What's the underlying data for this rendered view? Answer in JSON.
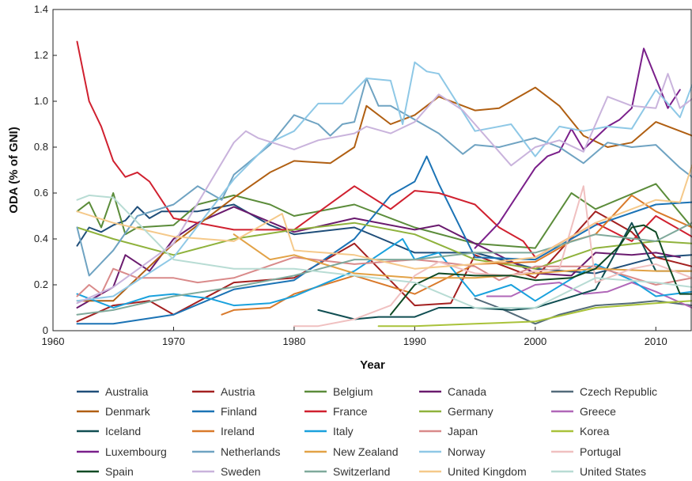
{
  "chart_data": {
    "type": "line",
    "title": "",
    "xlabel": "Year",
    "ylabel": "ODA (% of GNI)",
    "xlim": [
      1960,
      2013
    ],
    "ylim": [
      0,
      1.4
    ],
    "xticks": [
      1960,
      1970,
      1980,
      1990,
      2000,
      2010
    ],
    "yticks": [
      0,
      0.2,
      0.4,
      0.6,
      0.8,
      1.0,
      1.2,
      1.4
    ],
    "ytick_labels": [
      "0",
      "0.2",
      "0.4",
      "0.6",
      "0.8",
      "1.0",
      "1.2",
      "1.4"
    ],
    "grid": false,
    "legend_position": "bottom",
    "series": [
      {
        "name": "Australia",
        "color": "#1f4e79",
        "x": [
          1962,
          1963,
          1964,
          1965,
          1966,
          1967,
          1968,
          1969,
          1970,
          1972,
          1975,
          1978,
          1980,
          1985,
          1990,
          1995,
          2000,
          2005,
          2010,
          2013
        ],
        "y": [
          0.37,
          0.45,
          0.43,
          0.46,
          0.48,
          0.54,
          0.49,
          0.52,
          0.52,
          0.52,
          0.55,
          0.46,
          0.42,
          0.45,
          0.34,
          0.34,
          0.27,
          0.25,
          0.32,
          0.33
        ]
      },
      {
        "name": "Austria",
        "color": "#a32020",
        "x": [
          1962,
          1965,
          1968,
          1970,
          1975,
          1980,
          1985,
          1990,
          1993,
          1995,
          2000,
          2005,
          2008,
          2010,
          2013
        ],
        "y": [
          0.04,
          0.11,
          0.13,
          0.07,
          0.21,
          0.23,
          0.38,
          0.11,
          0.12,
          0.33,
          0.23,
          0.52,
          0.43,
          0.32,
          0.28
        ]
      },
      {
        "name": "Belgium",
        "color": "#5b8c3a",
        "x": [
          1962,
          1963,
          1964,
          1965,
          1966,
          1967,
          1970,
          1972,
          1975,
          1978,
          1980,
          1985,
          1990,
          1995,
          2000,
          2003,
          2005,
          2010,
          2013
        ],
        "y": [
          0.52,
          0.56,
          0.45,
          0.6,
          0.42,
          0.45,
          0.46,
          0.55,
          0.59,
          0.55,
          0.5,
          0.55,
          0.45,
          0.38,
          0.36,
          0.6,
          0.53,
          0.64,
          0.45
        ]
      },
      {
        "name": "Canada",
        "color": "#6a1b6e",
        "x": [
          1962,
          1965,
          1966,
          1968,
          1970,
          1972,
          1975,
          1980,
          1985,
          1990,
          1992,
          1995,
          2000,
          2003,
          2005,
          2008,
          2010,
          2012
        ],
        "y": [
          0.1,
          0.19,
          0.33,
          0.26,
          0.4,
          0.47,
          0.54,
          0.43,
          0.49,
          0.44,
          0.46,
          0.38,
          0.25,
          0.24,
          0.34,
          0.33,
          0.34,
          0.32
        ]
      },
      {
        "name": "Czech Republic",
        "color": "#536b7a",
        "x": [
          1995,
          1997,
          2000,
          2002,
          2005,
          2008,
          2010,
          2013
        ],
        "y": [
          0.14,
          0.1,
          0.03,
          0.07,
          0.11,
          0.12,
          0.13,
          0.11
        ]
      },
      {
        "name": "Denmark",
        "color": "#b05f12",
        "x": [
          1962,
          1965,
          1970,
          1975,
          1978,
          1980,
          1983,
          1985,
          1986,
          1988,
          1990,
          1992,
          1995,
          1997,
          2000,
          2002,
          2004,
          2006,
          2008,
          2010,
          2013
        ],
        "y": [
          0.13,
          0.13,
          0.38,
          0.58,
          0.69,
          0.74,
          0.73,
          0.8,
          0.98,
          0.9,
          0.94,
          1.02,
          0.96,
          0.97,
          1.06,
          0.98,
          0.85,
          0.8,
          0.82,
          0.91,
          0.85
        ]
      },
      {
        "name": "Finland",
        "color": "#1b73b5",
        "x": [
          1962,
          1965,
          1970,
          1975,
          1980,
          1985,
          1988,
          1990,
          1991,
          1992,
          1995,
          2000,
          2005,
          2010,
          2013
        ],
        "y": [
          0.03,
          0.03,
          0.07,
          0.18,
          0.22,
          0.4,
          0.59,
          0.65,
          0.76,
          0.64,
          0.32,
          0.31,
          0.46,
          0.55,
          0.56
        ]
      },
      {
        "name": "France",
        "color": "#d0202f",
        "x": [
          1962,
          1963,
          1964,
          1965,
          1966,
          1967,
          1968,
          1970,
          1975,
          1980,
          1985,
          1988,
          1990,
          1992,
          1995,
          1997,
          1999,
          2000,
          2002,
          2005,
          2008,
          2010,
          2013
        ],
        "y": [
          1.26,
          1.0,
          0.89,
          0.74,
          0.67,
          0.69,
          0.65,
          0.49,
          0.44,
          0.44,
          0.63,
          0.53,
          0.61,
          0.6,
          0.55,
          0.45,
          0.39,
          0.32,
          0.38,
          0.47,
          0.39,
          0.5,
          0.41
        ]
      },
      {
        "name": "Germany",
        "color": "#8fb23c",
        "x": [
          1962,
          1965,
          1970,
          1975,
          1980,
          1985,
          1990,
          1995,
          2000,
          2005,
          2010,
          2013
        ],
        "y": [
          0.45,
          0.4,
          0.33,
          0.4,
          0.44,
          0.47,
          0.42,
          0.31,
          0.27,
          0.36,
          0.39,
          0.38
        ]
      },
      {
        "name": "Greece",
        "color": "#b067b8",
        "x": [
          1996,
          1998,
          2000,
          2002,
          2004,
          2006,
          2008,
          2010,
          2013
        ],
        "y": [
          0.15,
          0.15,
          0.2,
          0.21,
          0.16,
          0.17,
          0.21,
          0.17,
          0.1
        ]
      },
      {
        "name": "Iceland",
        "color": "#104e52",
        "x": [
          1982,
          1985,
          1987,
          1990,
          1992,
          1995,
          1998,
          2000,
          2005,
          2008,
          2010,
          2013
        ],
        "y": [
          0.09,
          0.05,
          0.06,
          0.06,
          0.1,
          0.1,
          0.09,
          0.1,
          0.18,
          0.47,
          0.26,
          0.26
        ]
      },
      {
        "name": "Ireland",
        "color": "#d97a2b",
        "x": [
          1974,
          1975,
          1978,
          1980,
          1985,
          1990,
          1995,
          2000,
          2003,
          2005,
          2008,
          2010,
          2013
        ],
        "y": [
          0.07,
          0.09,
          0.1,
          0.16,
          0.24,
          0.16,
          0.29,
          0.3,
          0.39,
          0.42,
          0.59,
          0.52,
          0.45
        ]
      },
      {
        "name": "Italy",
        "color": "#1aa1dd",
        "x": [
          1962,
          1965,
          1968,
          1970,
          1973,
          1975,
          1978,
          1980,
          1985,
          1989,
          1990,
          1992,
          1995,
          1998,
          2000,
          2005,
          2008,
          2010,
          2013
        ],
        "y": [
          0.16,
          0.1,
          0.15,
          0.16,
          0.14,
          0.11,
          0.12,
          0.15,
          0.26,
          0.4,
          0.31,
          0.34,
          0.15,
          0.2,
          0.13,
          0.29,
          0.22,
          0.15,
          0.17
        ]
      },
      {
        "name": "Japan",
        "color": "#d98a8a",
        "x": [
          1962,
          1963,
          1964,
          1965,
          1967,
          1970,
          1972,
          1975,
          1980,
          1985,
          1990,
          1992,
          1995,
          1997,
          2000,
          2005,
          2010,
          2013
        ],
        "y": [
          0.15,
          0.2,
          0.16,
          0.27,
          0.23,
          0.23,
          0.21,
          0.23,
          0.32,
          0.29,
          0.31,
          0.3,
          0.28,
          0.22,
          0.28,
          0.28,
          0.2,
          0.23
        ]
      },
      {
        "name": "Korea",
        "color": "#a9c23a",
        "x": [
          1987,
          1990,
          1995,
          2000,
          2005,
          2010,
          2013
        ],
        "y": [
          0.02,
          0.02,
          0.03,
          0.04,
          0.1,
          0.12,
          0.13
        ]
      },
      {
        "name": "Luxembourg",
        "color": "#7a1f8a",
        "x": [
          1995,
          1997,
          2000,
          2001,
          2002,
          2003,
          2004,
          2005,
          2006,
          2007,
          2008,
          2009,
          2010,
          2011,
          2012
        ],
        "y": [
          0.36,
          0.47,
          0.71,
          0.76,
          0.78,
          0.88,
          0.79,
          0.84,
          0.89,
          0.92,
          0.97,
          1.23,
          1.1,
          0.97,
          1.05
        ]
      },
      {
        "name": "Netherlands",
        "color": "#6fa3c2",
        "x": [
          1962,
          1963,
          1965,
          1967,
          1970,
          1972,
          1974,
          1975,
          1978,
          1980,
          1982,
          1983,
          1984,
          1985,
          1986,
          1987,
          1988,
          1990,
          1992,
          1994,
          1995,
          1997,
          2000,
          2002,
          2004,
          2006,
          2008,
          2010,
          2012,
          2013
        ],
        "y": [
          0.45,
          0.24,
          0.35,
          0.5,
          0.55,
          0.63,
          0.57,
          0.68,
          0.81,
          0.94,
          0.9,
          0.85,
          0.9,
          0.91,
          1.1,
          0.98,
          0.98,
          0.92,
          0.86,
          0.77,
          0.81,
          0.8,
          0.84,
          0.8,
          0.73,
          0.82,
          0.8,
          0.81,
          0.71,
          0.67
        ]
      },
      {
        "name": "New Zealand",
        "color": "#e2a246",
        "x": [
          1975,
          1978,
          1980,
          1985,
          1990,
          1995,
          2000,
          2005,
          2010,
          2013
        ],
        "y": [
          0.42,
          0.31,
          0.33,
          0.25,
          0.23,
          0.23,
          0.25,
          0.27,
          0.26,
          0.26
        ]
      },
      {
        "name": "Norway",
        "color": "#8ec8e6",
        "x": [
          1962,
          1965,
          1970,
          1975,
          1978,
          1980,
          1982,
          1984,
          1986,
          1988,
          1989,
          1990,
          1991,
          1992,
          1995,
          1998,
          2000,
          2002,
          2004,
          2006,
          2008,
          2010,
          2012,
          2013
        ],
        "y": [
          0.13,
          0.15,
          0.32,
          0.66,
          0.82,
          0.87,
          0.99,
          0.99,
          1.1,
          1.09,
          0.9,
          1.17,
          1.13,
          1.12,
          0.87,
          0.9,
          0.76,
          0.89,
          0.87,
          0.89,
          0.88,
          1.05,
          0.93,
          1.07
        ]
      },
      {
        "name": "Portugal",
        "color": "#f0c0c0",
        "x": [
          1980,
          1982,
          1985,
          1988,
          1990,
          1992,
          1995,
          1998,
          2000,
          2002,
          2004,
          2005,
          2008,
          2010,
          2013
        ],
        "y": [
          0.02,
          0.02,
          0.05,
          0.11,
          0.24,
          0.3,
          0.25,
          0.24,
          0.26,
          0.27,
          0.63,
          0.21,
          0.27,
          0.29,
          0.23
        ]
      },
      {
        "name": "Spain",
        "color": "#0e4a24",
        "x": [
          1988,
          1990,
          1992,
          1995,
          1998,
          2000,
          2003,
          2005,
          2007,
          2008,
          2009,
          2010,
          2011,
          2012,
          2013
        ],
        "y": [
          0.07,
          0.2,
          0.25,
          0.24,
          0.24,
          0.22,
          0.23,
          0.27,
          0.37,
          0.45,
          0.46,
          0.43,
          0.29,
          0.16,
          0.16
        ]
      },
      {
        "name": "Sweden",
        "color": "#c9b3dc",
        "x": [
          1962,
          1965,
          1970,
          1975,
          1976,
          1977,
          1980,
          1982,
          1985,
          1986,
          1988,
          1990,
          1992,
          1994,
          1996,
          1998,
          2000,
          2002,
          2004,
          2006,
          2008,
          2010,
          2011,
          2012,
          2013
        ],
        "y": [
          0.12,
          0.19,
          0.38,
          0.82,
          0.87,
          0.84,
          0.79,
          0.83,
          0.86,
          0.89,
          0.86,
          0.91,
          1.03,
          0.96,
          0.84,
          0.72,
          0.8,
          0.83,
          0.78,
          1.02,
          0.98,
          0.97,
          1.12,
          0.97,
          1.01
        ]
      },
      {
        "name": "Switzerland",
        "color": "#7fa99b",
        "x": [
          1962,
          1965,
          1970,
          1975,
          1980,
          1985,
          1990,
          1995,
          2000,
          2005,
          2010,
          2013
        ],
        "y": [
          0.07,
          0.09,
          0.15,
          0.19,
          0.24,
          0.31,
          0.31,
          0.34,
          0.34,
          0.42,
          0.39,
          0.47
        ]
      },
      {
        "name": "United Kingdom",
        "color": "#f5c98a",
        "x": [
          1962,
          1965,
          1970,
          1975,
          1979,
          1980,
          1985,
          1990,
          1995,
          2000,
          2005,
          2010,
          2012,
          2013
        ],
        "y": [
          0.52,
          0.47,
          0.41,
          0.39,
          0.51,
          0.35,
          0.33,
          0.27,
          0.29,
          0.32,
          0.47,
          0.57,
          0.56,
          0.72
        ]
      },
      {
        "name": "United States",
        "color": "#b8dcd4",
        "x": [
          1962,
          1963,
          1965,
          1970,
          1975,
          1980,
          1985,
          1990,
          1995,
          2000,
          2005,
          2010,
          2013
        ],
        "y": [
          0.57,
          0.59,
          0.58,
          0.31,
          0.27,
          0.27,
          0.24,
          0.21,
          0.1,
          0.1,
          0.23,
          0.21,
          0.19
        ]
      }
    ]
  }
}
